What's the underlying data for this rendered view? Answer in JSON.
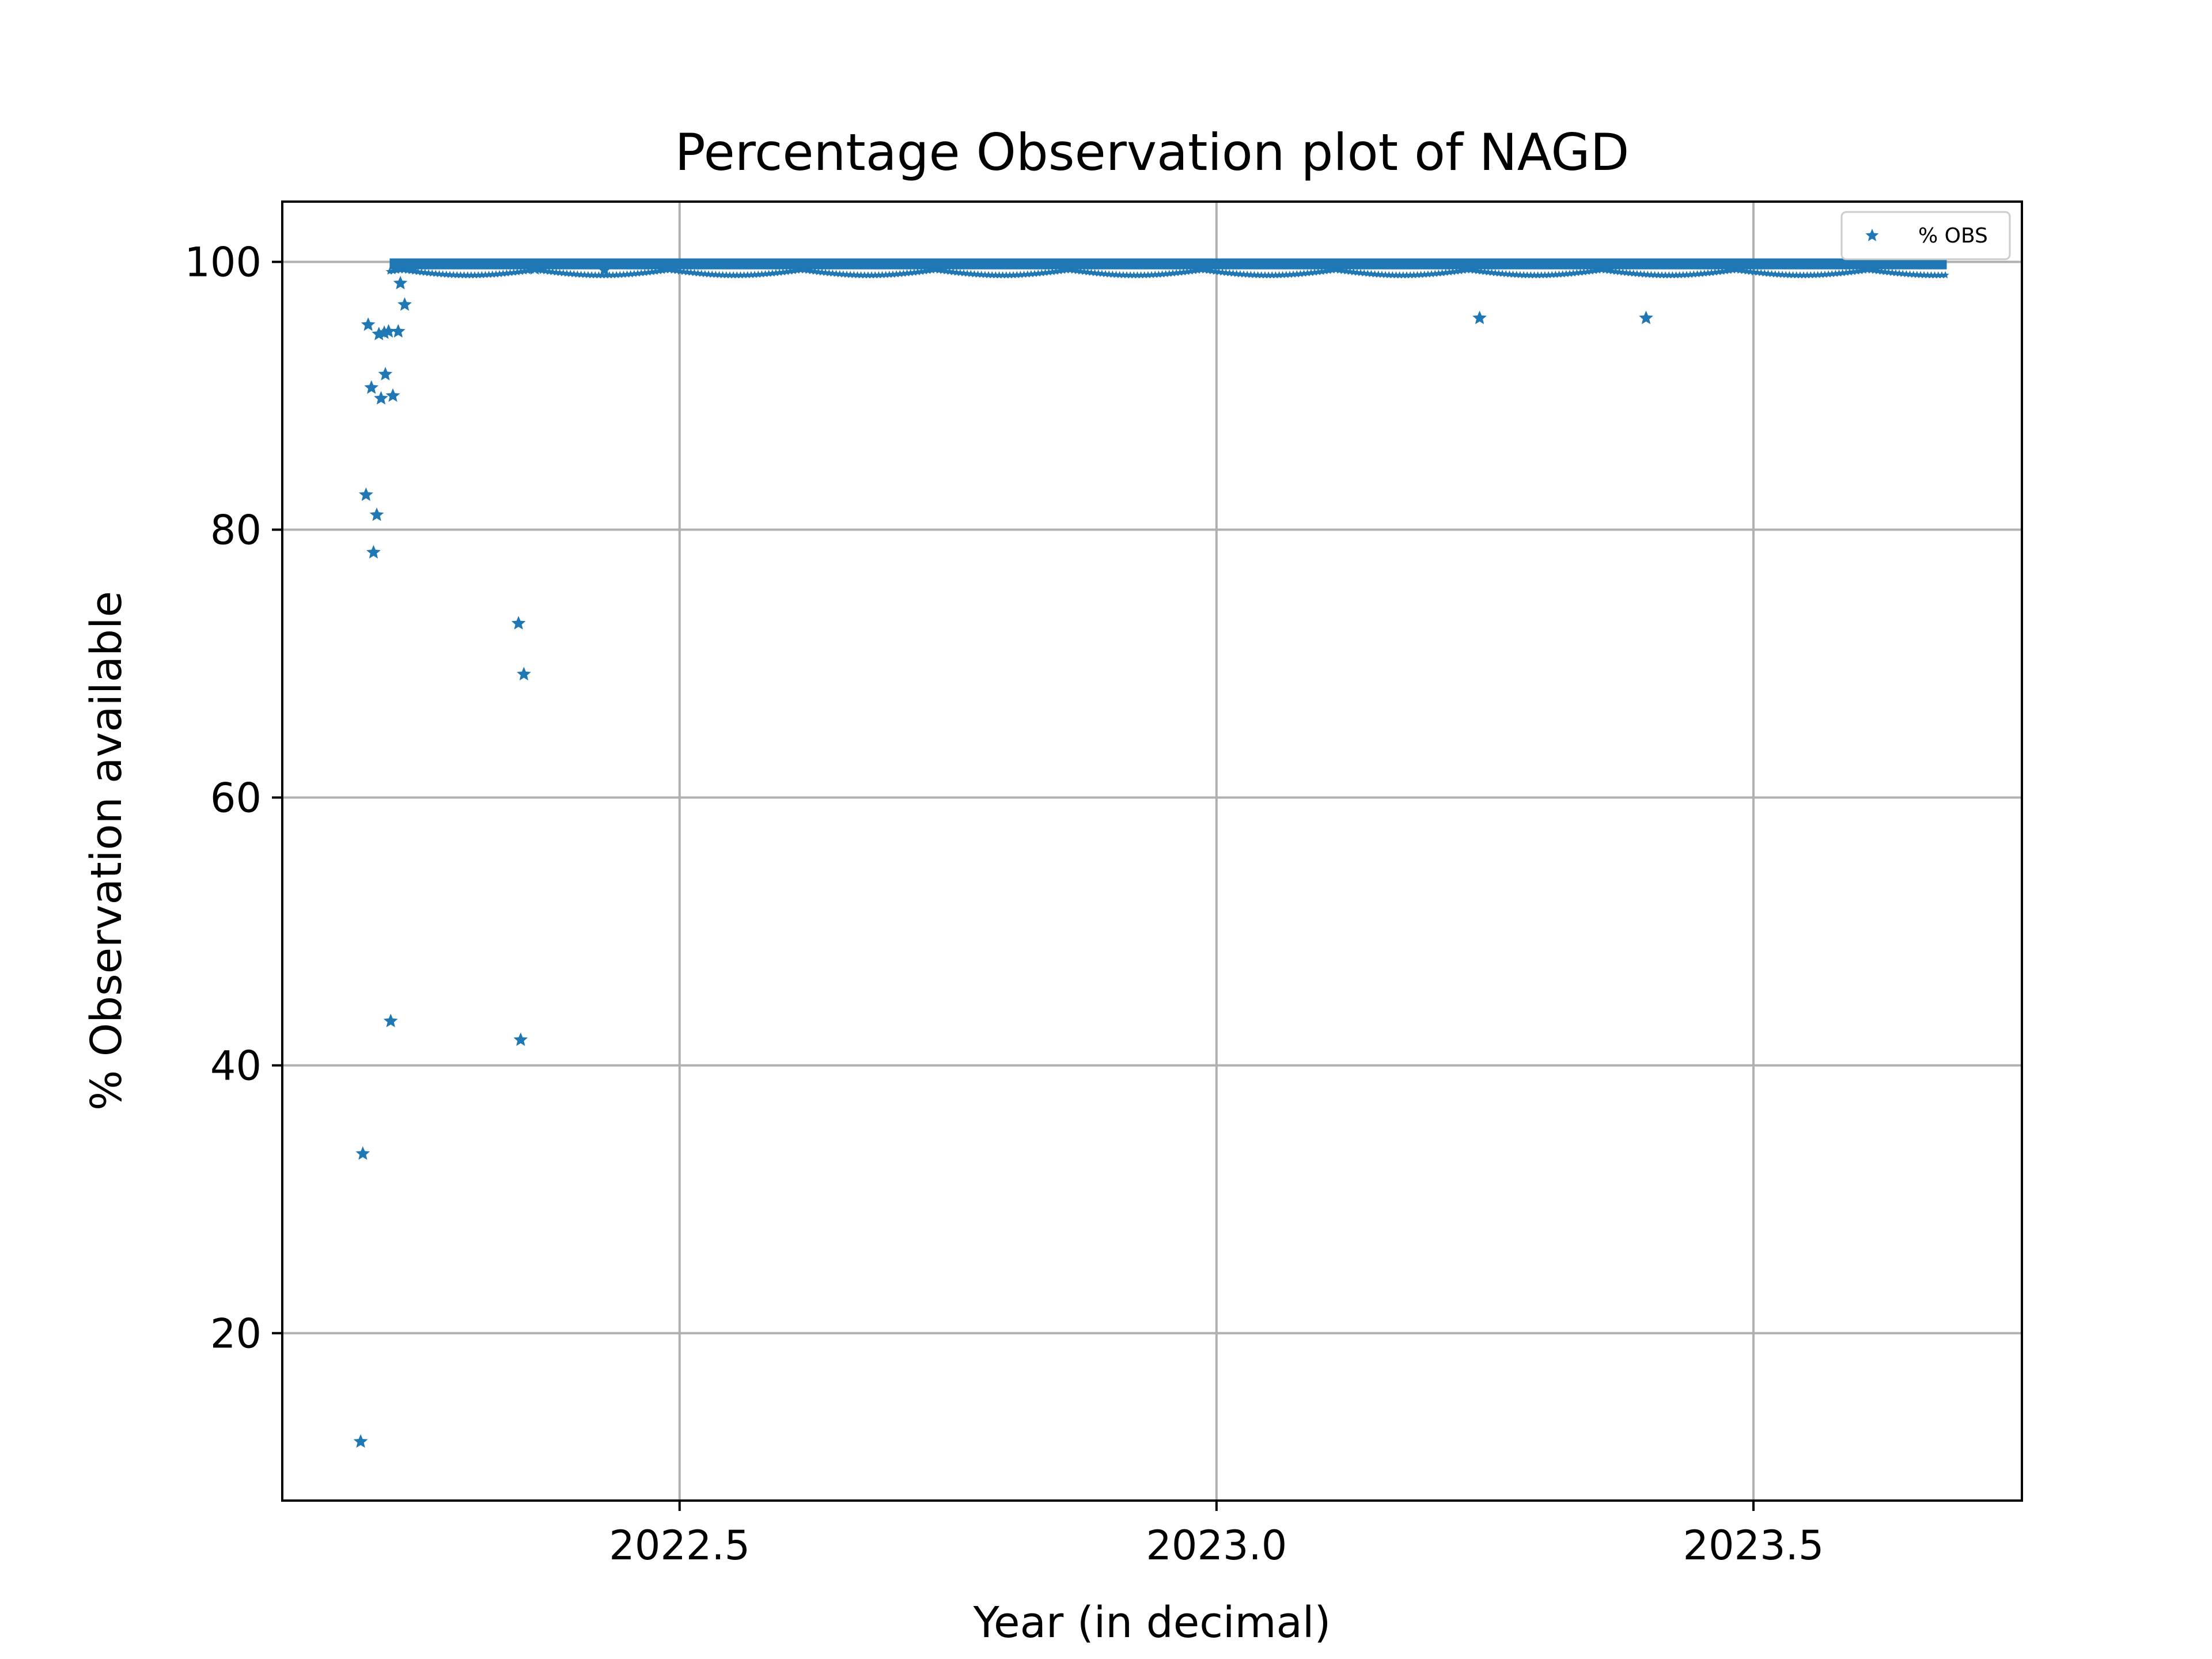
{
  "chart_data": {
    "type": "scatter",
    "title": "Percentage Observation plot of NAGD",
    "xlabel": "Year (in decimal)",
    "ylabel": "% Observation available",
    "xlim": [
      2022.13,
      2023.75
    ],
    "ylim": [
      7.5,
      104.5
    ],
    "xticks": [
      2022.5,
      2023.0,
      2023.5
    ],
    "xtick_labels": [
      "2022.5",
      "2023.0",
      "2023.5"
    ],
    "yticks": [
      20,
      40,
      60,
      80,
      100
    ],
    "ytick_labels": [
      "20",
      "40",
      "60",
      "80",
      "100"
    ],
    "grid": true,
    "legend_position": "upper right",
    "marker": "star",
    "color": "#1f77b4",
    "series": [
      {
        "name": "% OBS",
        "dense_band": {
          "x_start": 2022.23,
          "x_end": 2023.68,
          "y_min": 99.7,
          "y_max": 100.0
        },
        "points": [
          {
            "x": 2022.203,
            "y": 11.9
          },
          {
            "x": 2022.205,
            "y": 33.4
          },
          {
            "x": 2022.208,
            "y": 82.6
          },
          {
            "x": 2022.21,
            "y": 95.3
          },
          {
            "x": 2022.213,
            "y": 90.6
          },
          {
            "x": 2022.215,
            "y": 78.3
          },
          {
            "x": 2022.218,
            "y": 81.1
          },
          {
            "x": 2022.22,
            "y": 94.6
          },
          {
            "x": 2022.222,
            "y": 89.8
          },
          {
            "x": 2022.225,
            "y": 94.7
          },
          {
            "x": 2022.226,
            "y": 91.6
          },
          {
            "x": 2022.229,
            "y": 94.8
          },
          {
            "x": 2022.231,
            "y": 43.3
          },
          {
            "x": 2022.233,
            "y": 90.0
          },
          {
            "x": 2022.238,
            "y": 94.8
          },
          {
            "x": 2022.24,
            "y": 98.4
          },
          {
            "x": 2022.244,
            "y": 96.8
          },
          {
            "x": 2022.252,
            "y": 99.6
          },
          {
            "x": 2022.35,
            "y": 73.0
          },
          {
            "x": 2022.352,
            "y": 41.9
          },
          {
            "x": 2022.355,
            "y": 69.2
          },
          {
            "x": 2022.365,
            "y": 99.5
          },
          {
            "x": 2022.43,
            "y": 99.4
          },
          {
            "x": 2023.245,
            "y": 95.8
          },
          {
            "x": 2023.4,
            "y": 95.8
          }
        ]
      }
    ]
  }
}
